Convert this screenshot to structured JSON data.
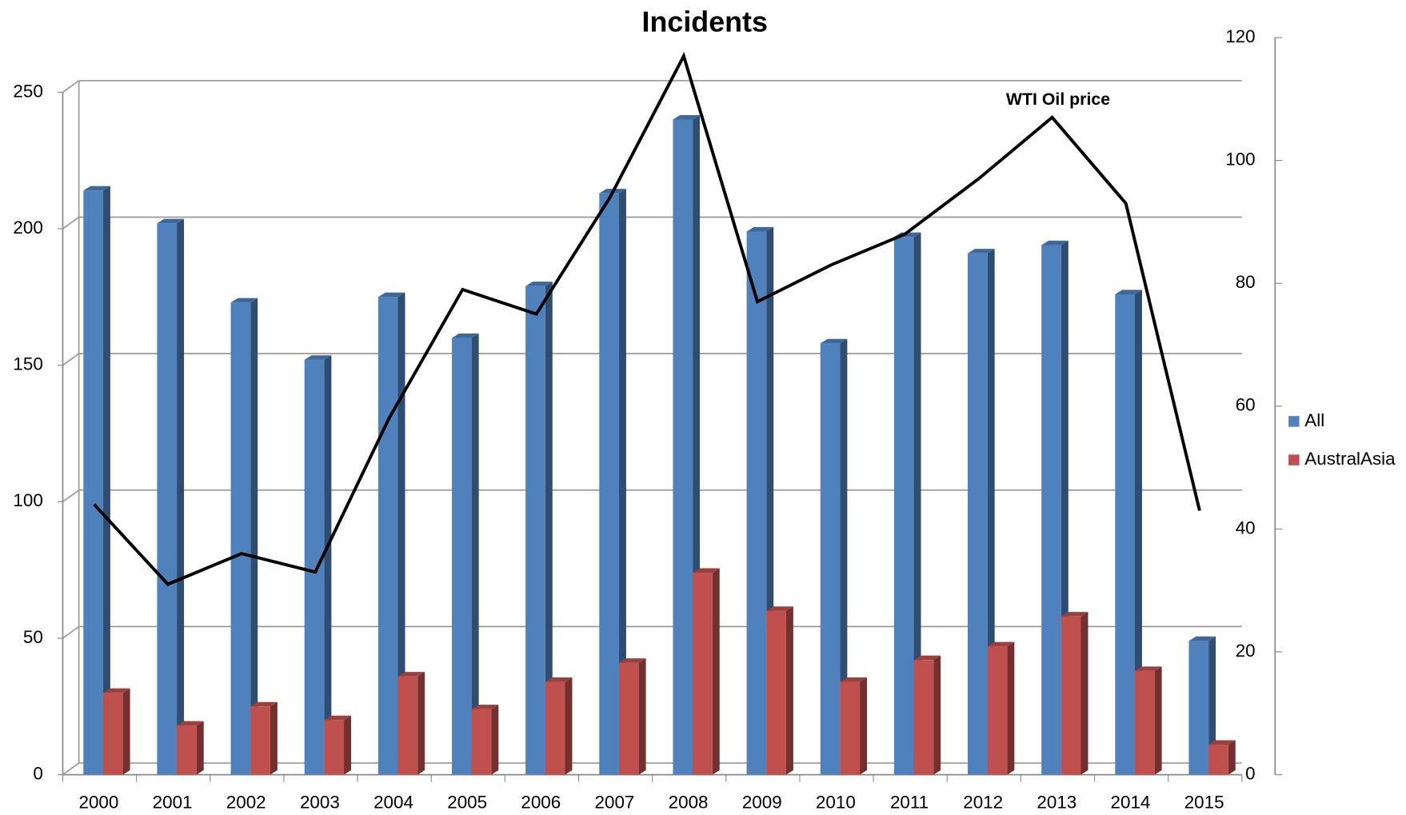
{
  "chart_data": {
    "type": "bar",
    "title": "Incidents",
    "categories": [
      "2000",
      "2001",
      "2002",
      "2003",
      "2004",
      "2005",
      "2006",
      "2007",
      "2008",
      "2009",
      "2010",
      "2011",
      "2012",
      "2013",
      "2014",
      "2015"
    ],
    "series": [
      {
        "name": "All",
        "color": "#4f81bd",
        "values": [
          214,
          202,
          173,
          152,
          175,
          160,
          179,
          213,
          240,
          199,
          158,
          197,
          191,
          194,
          176,
          49
        ]
      },
      {
        "name": "AustralAsia",
        "color": "#c0504d",
        "values": [
          30,
          18,
          25,
          20,
          36,
          24,
          34,
          41,
          74,
          60,
          34,
          42,
          47,
          58,
          38,
          11
        ]
      },
      {
        "type": "line",
        "axis": "y2",
        "color": "#000000",
        "values": [
          44,
          31,
          36,
          33,
          58,
          79,
          75,
          94,
          117,
          77,
          83,
          88,
          97,
          107,
          93,
          43
        ]
      }
    ],
    "annotations": [
      "WTI Oil price"
    ],
    "ylim": [
      0,
      250
    ],
    "yticks": [
      0,
      50,
      100,
      150,
      200,
      250
    ],
    "y2lim": [
      0,
      120
    ],
    "y2ticks": [
      0,
      20,
      40,
      60,
      80,
      100,
      120
    ],
    "grid": true,
    "legend": "right"
  }
}
